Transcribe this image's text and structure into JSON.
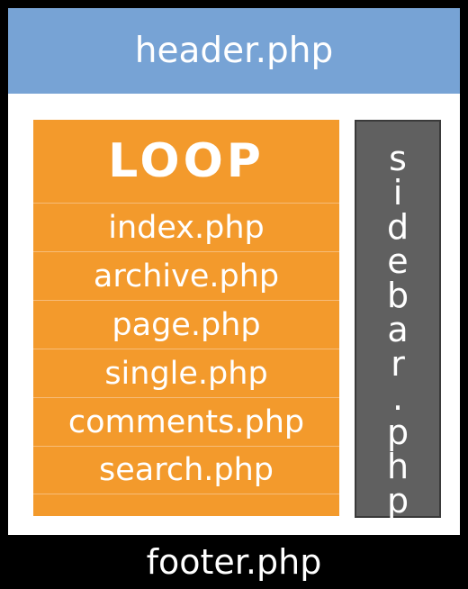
{
  "header": {
    "label": "header.php"
  },
  "loop": {
    "title": "LOOP",
    "items": [
      "index.php",
      "archive.php",
      "page.php",
      "single.php",
      "comments.php",
      "search.php"
    ]
  },
  "sidebar": {
    "letters": [
      "s",
      "i",
      "d",
      "e",
      "b",
      "a",
      "r",
      ".",
      "p",
      "h",
      "p"
    ]
  },
  "footer": {
    "label": "footer.php"
  },
  "colors": {
    "header": "#77a3d5",
    "loop": "#f39a2c",
    "sidebar": "#606060",
    "frame": "#000000"
  }
}
